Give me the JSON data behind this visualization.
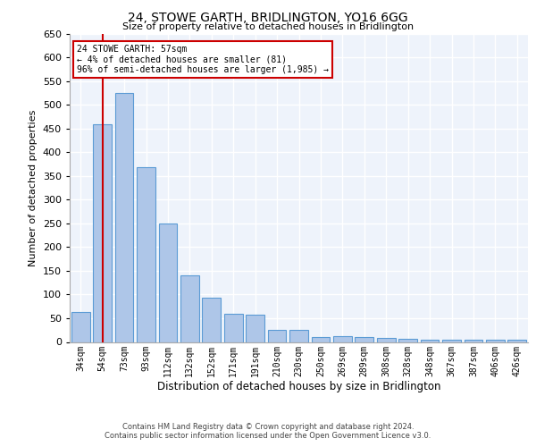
{
  "title": "24, STOWE GARTH, BRIDLINGTON, YO16 6GG",
  "subtitle": "Size of property relative to detached houses in Bridlington",
  "xlabel": "Distribution of detached houses by size in Bridlington",
  "ylabel": "Number of detached properties",
  "categories": [
    "34sqm",
    "54sqm",
    "73sqm",
    "93sqm",
    "112sqm",
    "132sqm",
    "152sqm",
    "171sqm",
    "191sqm",
    "210sqm",
    "230sqm",
    "250sqm",
    "269sqm",
    "289sqm",
    "308sqm",
    "328sqm",
    "348sqm",
    "367sqm",
    "387sqm",
    "406sqm",
    "426sqm"
  ],
  "values": [
    63,
    458,
    525,
    368,
    250,
    140,
    93,
    60,
    57,
    25,
    25,
    10,
    12,
    11,
    8,
    7,
    5,
    5,
    5,
    5,
    5
  ],
  "bar_color": "#aec6e8",
  "bar_edge_color": "#5b9bd5",
  "background_color": "#eef3fb",
  "grid_color": "#ffffff",
  "red_line_x": 1.0,
  "annotation_text": "24 STOWE GARTH: 57sqm\n← 4% of detached houses are smaller (81)\n96% of semi-detached houses are larger (1,985) →",
  "annotation_box_color": "#ffffff",
  "annotation_box_edge_color": "#cc0000",
  "footer_line1": "Contains HM Land Registry data © Crown copyright and database right 2024.",
  "footer_line2": "Contains public sector information licensed under the Open Government Licence v3.0.",
  "ylim": [
    0,
    650
  ],
  "yticks": [
    0,
    50,
    100,
    150,
    200,
    250,
    300,
    350,
    400,
    450,
    500,
    550,
    600,
    650
  ]
}
